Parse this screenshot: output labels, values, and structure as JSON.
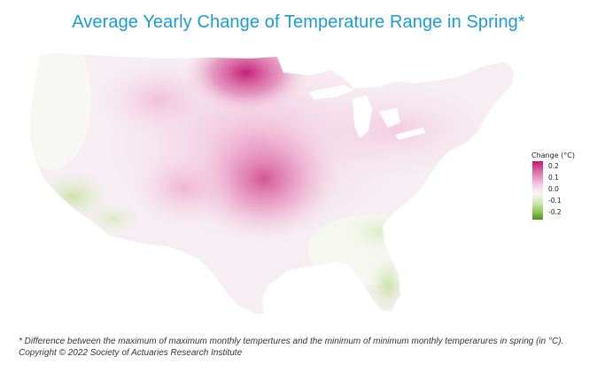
{
  "title": "Average Yearly Change of Temperature Range in Spring*",
  "legend": {
    "title": "Change (°C)",
    "ticks": [
      "0.2",
      "0.1",
      "0.0",
      "-0.1",
      "-0.2"
    ],
    "colors": {
      "high": "#c2166f",
      "mid": "#f7f7f7",
      "low": "#4d9221"
    }
  },
  "map": {
    "region": "Contiguous United States",
    "hotspots": [
      {
        "area": "northern plains / Minnesota",
        "value": 0.2
      },
      {
        "area": "central plains / Kansas",
        "value": 0.15
      },
      {
        "area": "Texas panhandle",
        "value": 0.1
      },
      {
        "area": "California coast",
        "value": -0.1
      },
      {
        "area": "Florida",
        "value": -0.1
      },
      {
        "area": "southeast",
        "value": -0.05
      }
    ]
  },
  "footnote": {
    "line1": "* Difference between the maximum of maximum monthly tempertures and the minimum of minimum monthly temperarures in spring (in °C).",
    "line2": "Copyright © 2022 Society of Actuaries Research Institute"
  }
}
